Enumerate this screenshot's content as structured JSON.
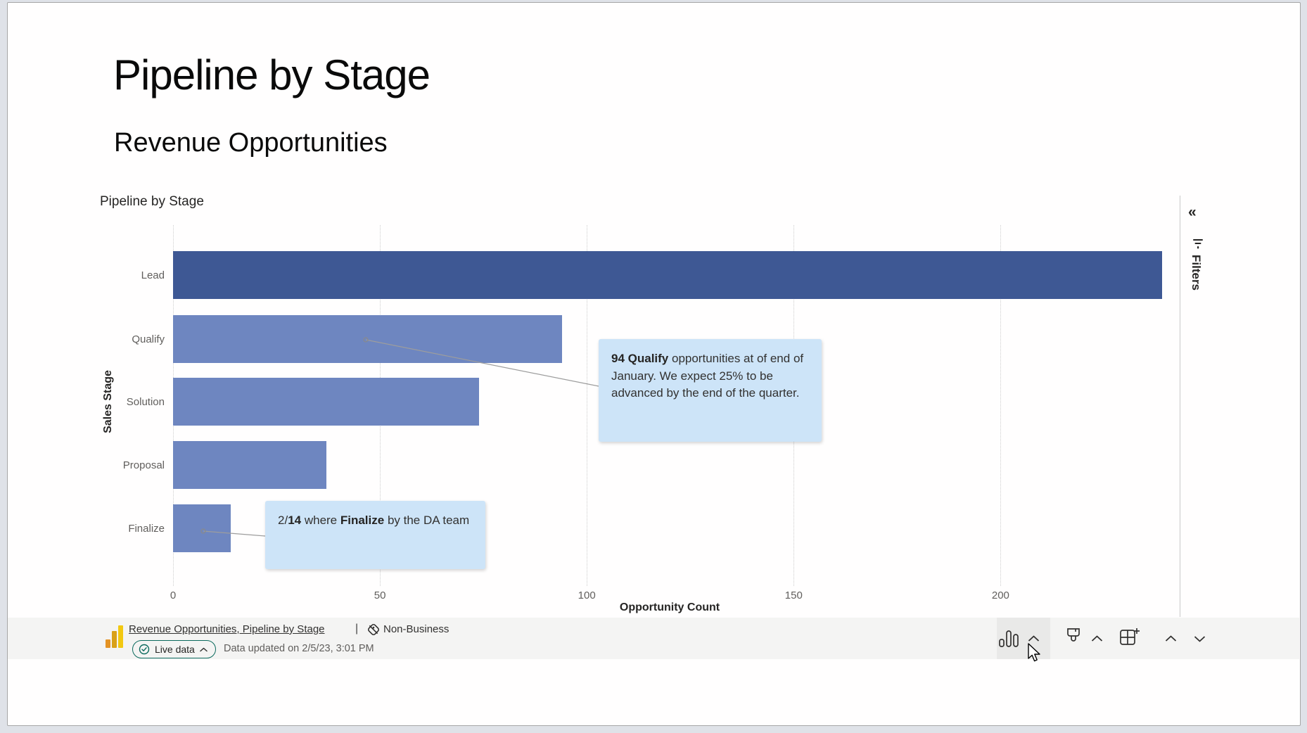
{
  "report": {
    "title": "Pipeline by Stage",
    "subtitle": "Revenue Opportunities"
  },
  "chart": {
    "visual_title": "Pipeline by Stage"
  },
  "chart_data": {
    "type": "bar",
    "orientation": "horizontal",
    "title": "Pipeline by Stage",
    "categories": [
      "Lead",
      "Qualify",
      "Solution",
      "Proposal",
      "Finalize"
    ],
    "values": [
      239,
      94,
      74,
      37,
      14
    ],
    "xlabel": "Opportunity Count",
    "ylabel": "Sales Stage",
    "x_ticks": [
      0,
      50,
      100,
      150,
      200
    ],
    "xlim": [
      0,
      239
    ],
    "grid": "vertical-dotted",
    "legend": "none",
    "bar_color_lead": "#3E5894",
    "bar_color_default": "#6E86C0",
    "annotations": [
      {
        "target": "Qualify",
        "segments": [
          {
            "text": "94 Qualify",
            "bold": true
          },
          {
            "text": " opportunities at of end of January. We expect 25% to be advanced by the end of the quarter.",
            "bold": false
          }
        ]
      },
      {
        "target": "Finalize",
        "segments": [
          {
            "text": "2/",
            "bold": false
          },
          {
            "text": "14",
            "bold": true
          },
          {
            "text": " where ",
            "bold": false
          },
          {
            "text": "Finalize",
            "bold": true
          },
          {
            "text": " by the DA team",
            "bold": false
          }
        ]
      }
    ]
  },
  "filters": {
    "label": "Filters",
    "collapse_glyph": "«"
  },
  "footer": {
    "source_link": "Revenue Opportunities, Pipeline by Stage",
    "separator": "|",
    "sensitivity_label": "Non-Business",
    "live_badge": "Live data",
    "updated_text": "Data updated on 2/5/23, 3:01 PM",
    "icon_names": [
      "column-chart",
      "chevron-up",
      "paintbrush",
      "chevron-up",
      "add-visual-grid",
      "chevron-up",
      "chevron-down"
    ]
  },
  "colors": {
    "bar_dark": "#3E5894",
    "bar_light": "#6E86C0",
    "callout_bg": "#CDE4F8",
    "teal_accent": "#0B6A5D",
    "footer_bg": "#F4F4F3",
    "logo_yellow": "#F2C811",
    "text_dark": "#252423",
    "text_gray": "#605E5C"
  }
}
